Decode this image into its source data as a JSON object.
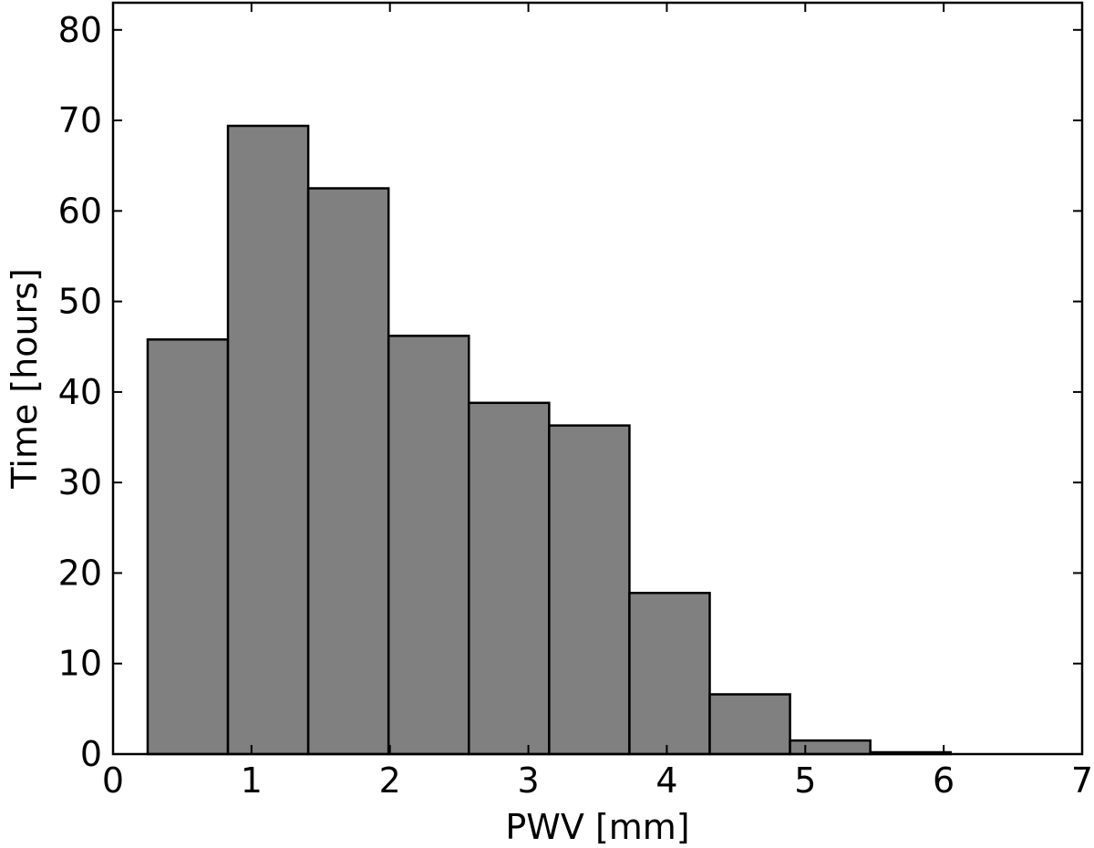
{
  "chart_data": {
    "type": "bar",
    "histogram": true,
    "title": "",
    "xlabel": "PWV [mm]",
    "ylabel": "Time [hours]",
    "xlim": [
      0,
      7
    ],
    "ylim": [
      0,
      83
    ],
    "xticks": [
      0,
      1,
      2,
      3,
      4,
      5,
      6,
      7
    ],
    "yticks": [
      0,
      10,
      20,
      30,
      40,
      50,
      60,
      70,
      80
    ],
    "grid": false,
    "legend": "none",
    "bar_color": "#808080",
    "edge_color": "#000000",
    "bin_edges": [
      0.25,
      0.83,
      1.41,
      1.99,
      2.57,
      3.15,
      3.73,
      4.31,
      4.89,
      5.47,
      6.05
    ],
    "values": [
      45.8,
      69.4,
      62.5,
      46.2,
      38.8,
      36.3,
      17.8,
      6.6,
      1.5,
      0.2
    ]
  }
}
